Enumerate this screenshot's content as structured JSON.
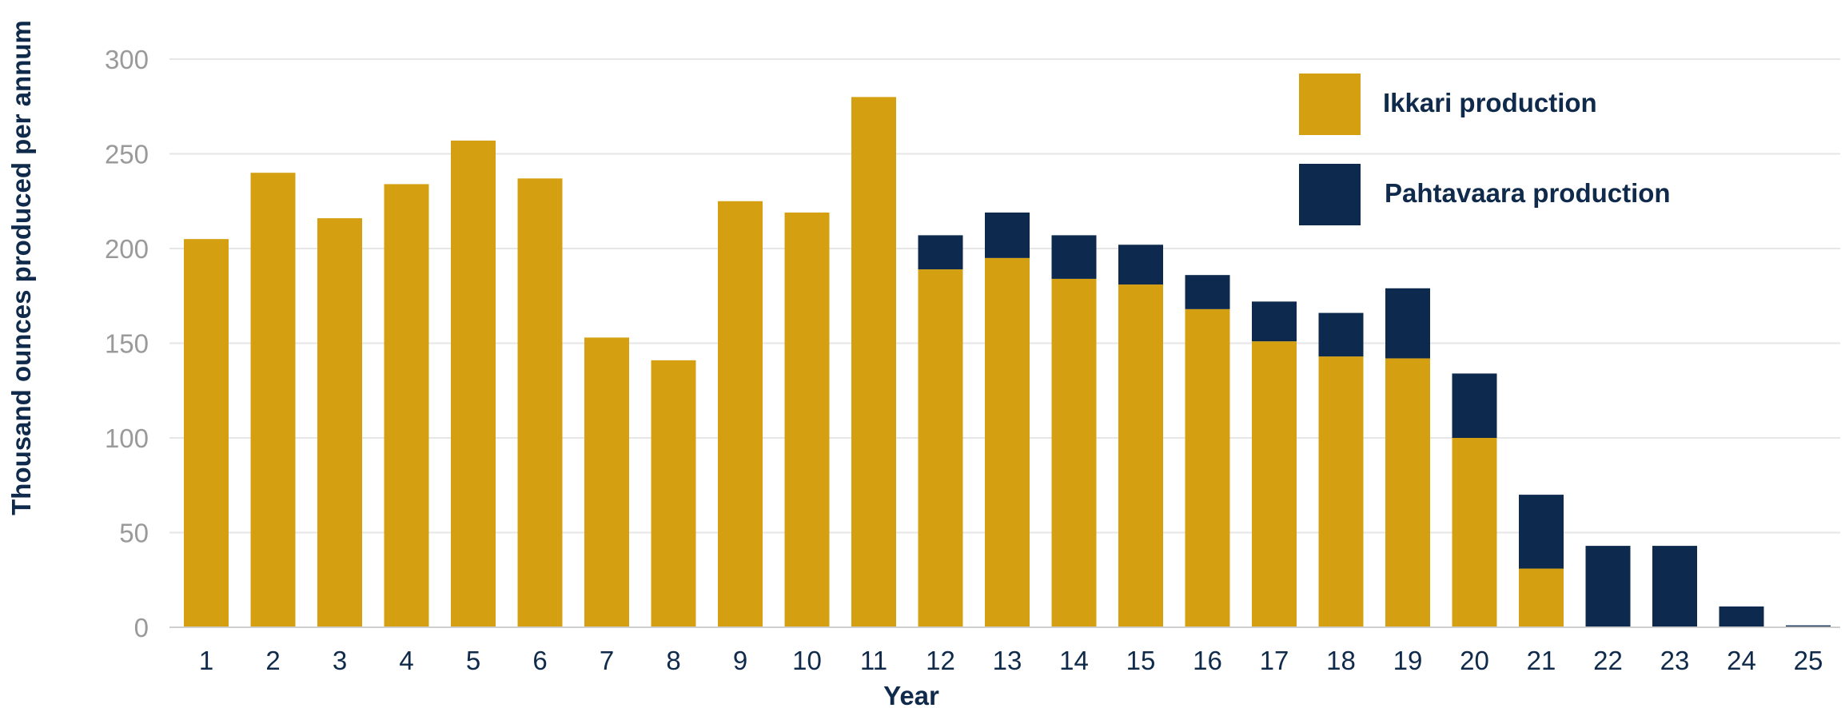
{
  "chart_data": {
    "type": "bar",
    "stacked": true,
    "title": "",
    "xlabel": "Year",
    "ylabel": "Thousand ounces produced per annum",
    "ylim": [
      0,
      300
    ],
    "yticks": [
      0,
      50,
      100,
      150,
      200,
      250,
      300
    ],
    "grid": true,
    "legend_position": "top-right",
    "categories": [
      "1",
      "2",
      "3",
      "4",
      "5",
      "6",
      "7",
      "8",
      "9",
      "10",
      "11",
      "12",
      "13",
      "14",
      "15",
      "16",
      "17",
      "18",
      "19",
      "20",
      "21",
      "22",
      "23",
      "24",
      "25"
    ],
    "series": [
      {
        "name": "Ikkari production",
        "color": "#d4a012",
        "values": [
          205,
          240,
          216,
          234,
          257,
          237,
          153,
          141,
          225,
          219,
          280,
          189,
          195,
          184,
          181,
          168,
          151,
          143,
          142,
          100,
          31,
          0,
          0,
          0,
          0
        ]
      },
      {
        "name": "Pahtavaara production",
        "color": "#0d2a4e",
        "values": [
          0,
          0,
          0,
          0,
          0,
          0,
          0,
          0,
          0,
          0,
          0,
          18,
          24,
          23,
          21,
          18,
          21,
          23,
          37,
          34,
          39,
          43,
          43,
          11,
          1
        ]
      }
    ]
  }
}
